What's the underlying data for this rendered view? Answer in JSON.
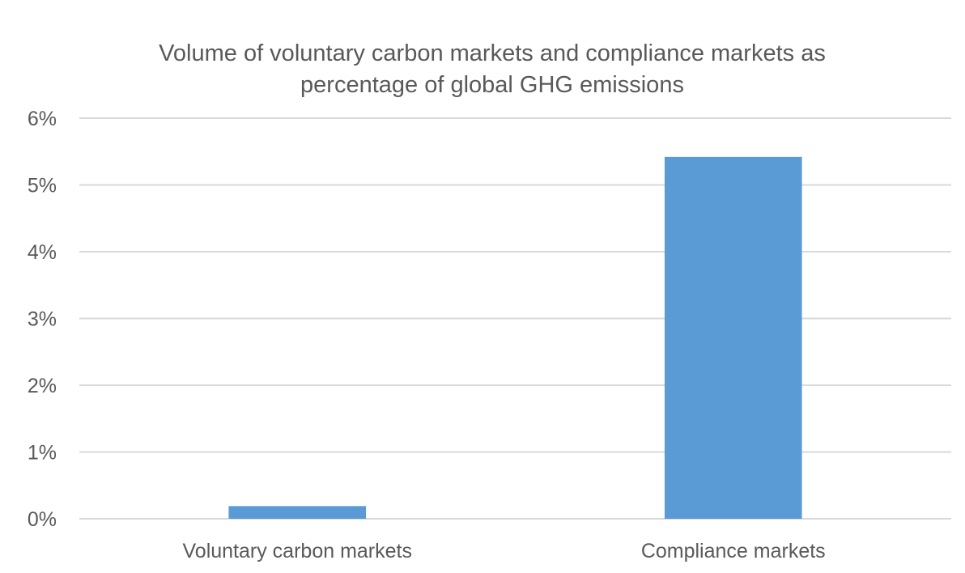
{
  "chart_data": {
    "type": "bar",
    "title": "Volume of voluntary carbon markets and compliance markets as percentage of global GHG emissions",
    "title_lines": [
      "Volume of voluntary carbon markets and compliance markets as",
      "percentage of global GHG emissions"
    ],
    "categories": [
      "Voluntary carbon markets",
      "Compliance markets"
    ],
    "values": [
      0.19,
      5.42
    ],
    "value_unit": "%",
    "xlabel": "",
    "ylabel": "",
    "ylim": [
      0,
      6
    ],
    "yticks": [
      0,
      1,
      2,
      3,
      4,
      5,
      6
    ],
    "ytick_labels": [
      "0%",
      "1%",
      "2%",
      "3%",
      "4%",
      "5%",
      "6%"
    ],
    "grid": true,
    "legend": "none",
    "colors": {
      "bar": "#5b9bd5",
      "grid": "#d9d9d9",
      "text": "#595959"
    }
  }
}
